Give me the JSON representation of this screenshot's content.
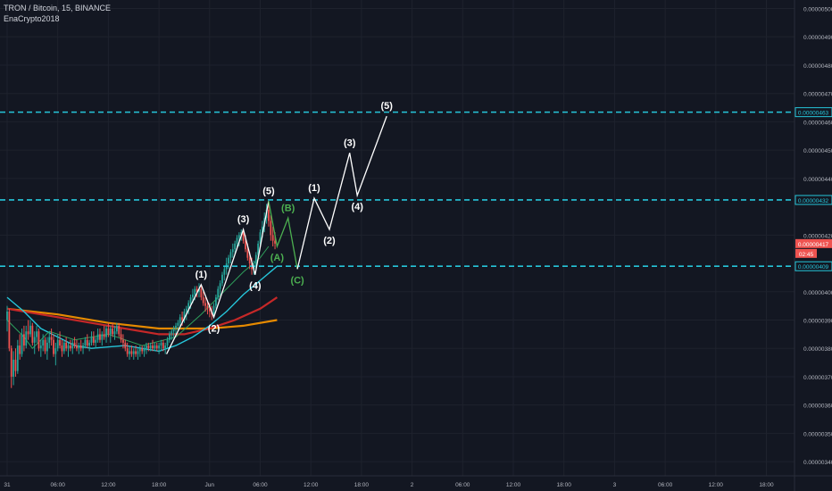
{
  "header": {
    "symbol_line": "TRON / Bitcoin, 15, BINANCE",
    "author": "EnaCrypto2018"
  },
  "chart_data": {
    "type": "candlestick",
    "y_range": [
      3.35e-06,
      5.03e-06
    ],
    "y_ticks": [
      "0.00000500",
      "0.00000490",
      "0.00000480",
      "0.00000470",
      "0.00000460",
      "0.00000450",
      "0.00000440",
      "0.00000420",
      "0.00000400",
      "0.00000390",
      "0.00000380",
      "0.00000370",
      "0.00000360",
      "0.00000350",
      "0.00000340"
    ],
    "x_ticks": [
      "31",
      "06:00",
      "12:00",
      "18:00",
      "Jun",
      "06:00",
      "12:00",
      "18:00",
      "2",
      "06:00",
      "12:00",
      "18:00",
      "3",
      "06:00",
      "12:00",
      "18:00"
    ],
    "horizontal_levels": [
      {
        "value": 4.634e-06,
        "label": "0.00000463"
      },
      {
        "value": 4.324e-06,
        "label": "0.00000432"
      },
      {
        "value": 4.09e-06,
        "label": "0.00000409"
      }
    ],
    "last_price": {
      "label": "0.00000417",
      "value": 4.17e-06,
      "countdown": "02:45"
    },
    "colors": {
      "background": "#131722",
      "level_line": "#26c6da",
      "candle_up": "#26a69a",
      "candle_down": "#ef5350",
      "wave_main": "#ffffff",
      "wave_correction": "#4caf50",
      "ma_teal": "#26c6da",
      "ma_red": "#c62828",
      "ma_orange": "#e68a00",
      "ma_green": "#2e9e5b",
      "price_tag": "#ef5350"
    },
    "wave_points": [
      {
        "t": 18.9,
        "v": 3.78e-06,
        "label": ""
      },
      {
        "t": 23.0,
        "v": 4.025e-06,
        "label": "(1)"
      },
      {
        "t": 24.5,
        "v": 3.91e-06,
        "label": "(2)"
      },
      {
        "t": 28.0,
        "v": 4.22e-06,
        "label": "(3)"
      },
      {
        "t": 29.4,
        "v": 4.06e-06,
        "label": "(4)"
      },
      {
        "t": 31.0,
        "v": 4.32e-06,
        "label": "(5)"
      },
      {
        "t": 32.0,
        "v": 4.16e-06,
        "label": "(A)"
      },
      {
        "t": 33.3,
        "v": 4.26e-06,
        "label": "(B)"
      },
      {
        "t": 34.4,
        "v": 4.08e-06,
        "label": "(C)"
      },
      {
        "t": 36.4,
        "v": 4.33e-06,
        "label": "(1)"
      },
      {
        "t": 38.2,
        "v": 4.22e-06,
        "label": "(2)"
      },
      {
        "t": 40.6,
        "v": 4.49e-06,
        "label": "(3)"
      },
      {
        "t": 41.5,
        "v": 4.34e-06,
        "label": "(4)"
      },
      {
        "t": 45.0,
        "v": 4.62e-06,
        "label": "(5)"
      }
    ],
    "ma_orange": [
      [
        0,
        3.94e-06
      ],
      [
        6,
        3.92e-06
      ],
      [
        12,
        3.89e-06
      ],
      [
        18,
        3.87e-06
      ],
      [
        24,
        3.87e-06
      ],
      [
        28,
        3.88e-06
      ],
      [
        32,
        3.9e-06
      ]
    ],
    "ma_red": [
      [
        0,
        3.94e-06
      ],
      [
        6,
        3.91e-06
      ],
      [
        12,
        3.88e-06
      ],
      [
        18,
        3.85e-06
      ],
      [
        21,
        3.85e-06
      ],
      [
        24,
        3.87e-06
      ],
      [
        27,
        3.9e-06
      ],
      [
        30,
        3.94e-06
      ],
      [
        32,
        3.98e-06
      ]
    ],
    "ma_teal": [
      [
        0,
        3.98e-06
      ],
      [
        2,
        3.93e-06
      ],
      [
        4,
        3.87e-06
      ],
      [
        6,
        3.84e-06
      ],
      [
        8,
        3.81e-06
      ],
      [
        10,
        3.8e-06
      ],
      [
        14,
        3.81e-06
      ],
      [
        18,
        3.79e-06
      ],
      [
        20,
        3.81e-06
      ],
      [
        22,
        3.84e-06
      ],
      [
        24,
        3.88e-06
      ],
      [
        26,
        3.93e-06
      ],
      [
        28,
        3.99e-06
      ],
      [
        30,
        4.04e-06
      ],
      [
        32,
        4.09e-06
      ]
    ],
    "ma_green": [
      [
        0,
        3.9e-06
      ],
      [
        2,
        3.84e-06
      ],
      [
        3,
        3.8e-06
      ],
      [
        5,
        3.86e-06
      ],
      [
        8,
        3.83e-06
      ],
      [
        12,
        3.85e-06
      ],
      [
        16,
        3.81e-06
      ],
      [
        20,
        3.84e-06
      ],
      [
        23,
        3.92e-06
      ],
      [
        26,
        4.01e-06
      ],
      [
        28,
        4.07e-06
      ],
      [
        30,
        4.12e-06
      ],
      [
        31,
        4.16e-06
      ]
    ],
    "candles": [
      [
        0.0,
        3.9e-06,
        3.95e-06,
        3.86e-06,
        3.93e-06
      ],
      [
        0.25,
        3.93e-06,
        3.94e-06,
        3.79e-06,
        3.8e-06
      ],
      [
        0.5,
        3.8e-06,
        3.81e-06,
        3.66e-06,
        3.7e-06
      ],
      [
        0.75,
        3.7e-06,
        3.79e-06,
        3.67e-06,
        3.76e-06
      ],
      [
        1.0,
        3.76e-06,
        3.8e-06,
        3.7e-06,
        3.72e-06
      ],
      [
        1.25,
        3.72e-06,
        3.83e-06,
        3.71e-06,
        3.81e-06
      ],
      [
        1.5,
        3.81e-06,
        3.85e-06,
        3.76e-06,
        3.78e-06
      ],
      [
        1.75,
        3.78e-06,
        3.87e-06,
        3.77e-06,
        3.85e-06
      ],
      [
        2.0,
        3.85e-06,
        3.88e-06,
        3.79e-06,
        3.81e-06
      ],
      [
        2.25,
        3.81e-06,
        3.88e-06,
        3.8e-06,
        3.86e-06
      ],
      [
        2.5,
        3.86e-06,
        3.9e-06,
        3.83e-06,
        3.85e-06
      ],
      [
        2.75,
        3.85e-06,
        3.9e-06,
        3.84e-06,
        3.88e-06
      ],
      [
        3.0,
        3.88e-06,
        3.89e-06,
        3.81e-06,
        3.82e-06
      ],
      [
        3.25,
        3.82e-06,
        3.86e-06,
        3.78e-06,
        3.84e-06
      ],
      [
        3.5,
        3.84e-06,
        3.88e-06,
        3.82e-06,
        3.86e-06
      ],
      [
        3.75,
        3.86e-06,
        3.87e-06,
        3.79e-06,
        3.8e-06
      ],
      [
        4.0,
        3.8e-06,
        3.83e-06,
        3.77e-06,
        3.81e-06
      ],
      [
        4.25,
        3.81e-06,
        3.85e-06,
        3.79e-06,
        3.83e-06
      ],
      [
        4.5,
        3.83e-06,
        3.84e-06,
        3.78e-06,
        3.79e-06
      ],
      [
        4.75,
        3.79e-06,
        3.84e-06,
        3.76e-06,
        3.82e-06
      ],
      [
        5.0,
        3.82e-06,
        3.86e-06,
        3.8e-06,
        3.84e-06
      ],
      [
        5.25,
        3.84e-06,
        3.87e-06,
        3.81e-06,
        3.83e-06
      ],
      [
        5.5,
        3.83e-06,
        3.85e-06,
        3.77e-06,
        3.78e-06
      ],
      [
        5.75,
        3.78e-06,
        3.82e-06,
        3.74e-06,
        3.8e-06
      ],
      [
        6.0,
        3.8e-06,
        3.85e-06,
        3.79e-06,
        3.83e-06
      ],
      [
        6.25,
        3.83e-06,
        3.86e-06,
        3.8e-06,
        3.81e-06
      ],
      [
        6.5,
        3.81e-06,
        3.83e-06,
        3.77e-06,
        3.79e-06
      ],
      [
        6.75,
        3.79e-06,
        3.83e-06,
        3.78e-06,
        3.82e-06
      ],
      [
        7.0,
        3.82e-06,
        3.84e-06,
        3.79e-06,
        3.8e-06
      ],
      [
        7.25,
        3.8e-06,
        3.82e-06,
        3.77e-06,
        3.81e-06
      ],
      [
        7.5,
        3.81e-06,
        3.83e-06,
        3.79e-06,
        3.8e-06
      ],
      [
        7.75,
        3.8e-06,
        3.83e-06,
        3.78e-06,
        3.82e-06
      ],
      [
        8.0,
        3.82e-06,
        3.84e-06,
        3.8e-06,
        3.81e-06
      ],
      [
        8.25,
        3.81e-06,
        3.83e-06,
        3.79e-06,
        3.8e-06
      ],
      [
        8.5,
        3.8e-06,
        3.82e-06,
        3.78e-06,
        3.81e-06
      ],
      [
        8.75,
        3.81e-06,
        3.83e-06,
        3.79e-06,
        3.8e-06
      ],
      [
        9.0,
        3.8e-06,
        3.82e-06,
        3.78e-06,
        3.81e-06
      ],
      [
        9.25,
        3.81e-06,
        3.84e-06,
        3.8e-06,
        3.83e-06
      ],
      [
        9.5,
        3.83e-06,
        3.85e-06,
        3.8e-06,
        3.81e-06
      ],
      [
        9.75,
        3.81e-06,
        3.83e-06,
        3.79e-06,
        3.82e-06
      ],
      [
        10.0,
        3.82e-06,
        3.86e-06,
        3.81e-06,
        3.84e-06
      ],
      [
        10.25,
        3.84e-06,
        3.86e-06,
        3.81e-06,
        3.82e-06
      ],
      [
        10.5,
        3.82e-06,
        3.84e-06,
        3.8e-06,
        3.83e-06
      ],
      [
        10.75,
        3.83e-06,
        3.87e-06,
        3.82e-06,
        3.85e-06
      ],
      [
        11.0,
        3.85e-06,
        3.87e-06,
        3.82e-06,
        3.83e-06
      ],
      [
        11.25,
        3.83e-06,
        3.86e-06,
        3.81e-06,
        3.85e-06
      ],
      [
        11.5,
        3.85e-06,
        3.88e-06,
        3.83e-06,
        3.84e-06
      ],
      [
        11.75,
        3.84e-06,
        3.88e-06,
        3.82e-06,
        3.87e-06
      ],
      [
        12.0,
        3.87e-06,
        3.89e-06,
        3.84e-06,
        3.85e-06
      ],
      [
        12.25,
        3.85e-06,
        3.88e-06,
        3.82e-06,
        3.87e-06
      ],
      [
        12.5,
        3.87e-06,
        3.89e-06,
        3.84e-06,
        3.85e-06
      ],
      [
        12.75,
        3.85e-06,
        3.88e-06,
        3.83e-06,
        3.86e-06
      ],
      [
        13.0,
        3.86e-06,
        3.89e-06,
        3.85e-06,
        3.88e-06
      ],
      [
        13.25,
        3.88e-06,
        3.89e-06,
        3.84e-06,
        3.85e-06
      ],
      [
        13.5,
        3.85e-06,
        3.87e-06,
        3.82e-06,
        3.83e-06
      ],
      [
        13.75,
        3.83e-06,
        3.85e-06,
        3.8e-06,
        3.82e-06
      ],
      [
        14.0,
        3.82e-06,
        3.83e-06,
        3.79e-06,
        3.8e-06
      ],
      [
        14.25,
        3.8e-06,
        3.82e-06,
        3.77e-06,
        3.78e-06
      ],
      [
        14.5,
        3.78e-06,
        3.81e-06,
        3.76e-06,
        3.79e-06
      ],
      [
        14.75,
        3.79e-06,
        3.81e-06,
        3.77e-06,
        3.78e-06
      ],
      [
        15.0,
        3.78e-06,
        3.8e-06,
        3.76e-06,
        3.79e-06
      ],
      [
        15.25,
        3.79e-06,
        3.81e-06,
        3.77e-06,
        3.78e-06
      ],
      [
        15.5,
        3.78e-06,
        3.8e-06,
        3.76e-06,
        3.79e-06
      ],
      [
        15.75,
        3.79e-06,
        3.81e-06,
        3.77e-06,
        3.8e-06
      ],
      [
        16.0,
        3.8e-06,
        3.81e-06,
        3.78e-06,
        3.79e-06
      ],
      [
        16.25,
        3.79e-06,
        3.81e-06,
        3.77e-06,
        3.8e-06
      ],
      [
        16.5,
        3.8e-06,
        3.82e-06,
        3.78e-06,
        3.81e-06
      ],
      [
        16.75,
        3.81e-06,
        3.82e-06,
        3.79e-06,
        3.8e-06
      ],
      [
        17.0,
        3.8e-06,
        3.82e-06,
        3.79e-06,
        3.81e-06
      ],
      [
        17.25,
        3.81e-06,
        3.83e-06,
        3.79e-06,
        3.8e-06
      ],
      [
        17.5,
        3.8e-06,
        3.82e-06,
        3.79e-06,
        3.81e-06
      ],
      [
        17.75,
        3.81e-06,
        3.82e-06,
        3.79e-06,
        3.8e-06
      ],
      [
        18.0,
        3.8e-06,
        3.82e-06,
        3.78e-06,
        3.81e-06
      ],
      [
        18.25,
        3.81e-06,
        3.83e-06,
        3.79e-06,
        3.82e-06
      ],
      [
        18.5,
        3.82e-06,
        3.83e-06,
        3.79e-06,
        3.8e-06
      ],
      [
        18.75,
        3.8e-06,
        3.82e-06,
        3.78e-06,
        3.81e-06
      ],
      [
        19.0,
        3.81e-06,
        3.84e-06,
        3.8e-06,
        3.83e-06
      ],
      [
        19.25,
        3.83e-06,
        3.86e-06,
        3.82e-06,
        3.85e-06
      ],
      [
        19.5,
        3.85e-06,
        3.87e-06,
        3.83e-06,
        3.86e-06
      ],
      [
        19.75,
        3.86e-06,
        3.88e-06,
        3.84e-06,
        3.87e-06
      ],
      [
        20.0,
        3.87e-06,
        3.89e-06,
        3.85e-06,
        3.88e-06
      ],
      [
        20.25,
        3.88e-06,
        3.9e-06,
        3.86e-06,
        3.89e-06
      ],
      [
        20.5,
        3.89e-06,
        3.92e-06,
        3.87e-06,
        3.91e-06
      ],
      [
        20.75,
        3.91e-06,
        3.93e-06,
        3.88e-06,
        3.9e-06
      ],
      [
        21.0,
        3.9e-06,
        3.94e-06,
        3.89e-06,
        3.93e-06
      ],
      [
        21.25,
        3.93e-06,
        3.95e-06,
        3.9e-06,
        3.94e-06
      ],
      [
        21.5,
        3.94e-06,
        3.97e-06,
        3.92e-06,
        3.96e-06
      ],
      [
        21.75,
        3.96e-06,
        3.99e-06,
        3.94e-06,
        3.98e-06
      ],
      [
        22.0,
        3.98e-06,
        4.01e-06,
        3.96e-06,
        3.99e-06
      ],
      [
        22.25,
        3.99e-06,
        4.02e-06,
        3.97e-06,
        4.01e-06
      ],
      [
        22.5,
        4.01e-06,
        4.02e-06,
        3.98e-06,
        4e-06
      ],
      [
        22.75,
        4e-06,
        4.03e-06,
        3.98e-06,
        4.01e-06
      ],
      [
        23.0,
        4.01e-06,
        4.02e-06,
        3.97e-06,
        3.98e-06
      ],
      [
        23.25,
        3.98e-06,
        4e-06,
        3.95e-06,
        3.96e-06
      ],
      [
        23.5,
        3.96e-06,
        3.98e-06,
        3.93e-06,
        3.95e-06
      ],
      [
        23.75,
        3.95e-06,
        3.97e-06,
        3.92e-06,
        3.94e-06
      ],
      [
        24.0,
        3.94e-06,
        3.96e-06,
        3.91e-06,
        3.93e-06
      ],
      [
        24.25,
        3.93e-06,
        3.95e-06,
        3.9e-06,
        3.92e-06
      ],
      [
        24.5,
        3.92e-06,
        3.96e-06,
        3.91e-06,
        3.95e-06
      ],
      [
        24.75,
        3.95e-06,
        3.99e-06,
        3.94e-06,
        3.98e-06
      ],
      [
        25.0,
        3.98e-06,
        4.02e-06,
        3.97e-06,
        4.01e-06
      ],
      [
        25.25,
        4.01e-06,
        4.04e-06,
        3.99e-06,
        4.03e-06
      ],
      [
        25.5,
        4.03e-06,
        4.07e-06,
        4.02e-06,
        4.06e-06
      ],
      [
        25.75,
        4.06e-06,
        4.09e-06,
        4.04e-06,
        4.08e-06
      ],
      [
        26.0,
        4.08e-06,
        4.12e-06,
        4.06e-06,
        4.1e-06
      ],
      [
        26.25,
        4.1e-06,
        4.13e-06,
        4.08e-06,
        4.12e-06
      ],
      [
        26.5,
        4.12e-06,
        4.15e-06,
        4.1e-06,
        4.14e-06
      ],
      [
        26.75,
        4.14e-06,
        4.17e-06,
        4.12e-06,
        4.15e-06
      ],
      [
        27.0,
        4.15e-06,
        4.18e-06,
        4.13e-06,
        4.17e-06
      ],
      [
        27.25,
        4.17e-06,
        4.2e-06,
        4.15e-06,
        4.19e-06
      ],
      [
        27.5,
        4.19e-06,
        4.21e-06,
        4.16e-06,
        4.2e-06
      ],
      [
        27.75,
        4.2e-06,
        4.22e-06,
        4.18e-06,
        4.21e-06
      ],
      [
        28.0,
        4.21e-06,
        4.22e-06,
        4.17e-06,
        4.18e-06
      ],
      [
        28.25,
        4.18e-06,
        4.2e-06,
        4.14e-06,
        4.15e-06
      ],
      [
        28.5,
        4.15e-06,
        4.17e-06,
        4.11e-06,
        4.12e-06
      ],
      [
        28.75,
        4.12e-06,
        4.14e-06,
        4.08e-06,
        4.1e-06
      ],
      [
        29.0,
        4.1e-06,
        4.12e-06,
        4.06e-06,
        4.08e-06
      ],
      [
        29.25,
        4.08e-06,
        4.11e-06,
        4.06e-06,
        4.09e-06
      ],
      [
        29.5,
        4.09e-06,
        4.14e-06,
        4.08e-06,
        4.13e-06
      ],
      [
        29.75,
        4.13e-06,
        4.18e-06,
        4.12e-06,
        4.17e-06
      ],
      [
        30.0,
        4.17e-06,
        4.22e-06,
        4.16e-06,
        4.21e-06
      ],
      [
        30.25,
        4.21e-06,
        4.25e-06,
        4.19e-06,
        4.23e-06
      ],
      [
        30.5,
        4.23e-06,
        4.28e-06,
        4.21e-06,
        4.26e-06
      ],
      [
        30.75,
        4.26e-06,
        4.31e-06,
        4.24e-06,
        4.29e-06
      ],
      [
        31.0,
        4.29e-06,
        4.32e-06,
        4.23e-06,
        4.25e-06
      ],
      [
        31.25,
        4.25e-06,
        4.27e-06,
        4.18e-06,
        4.2e-06
      ],
      [
        31.5,
        4.2e-06,
        4.23e-06,
        4.16e-06,
        4.18e-06
      ],
      [
        31.75,
        4.18e-06,
        4.21e-06,
        4.15e-06,
        4.17e-06
      ]
    ]
  }
}
